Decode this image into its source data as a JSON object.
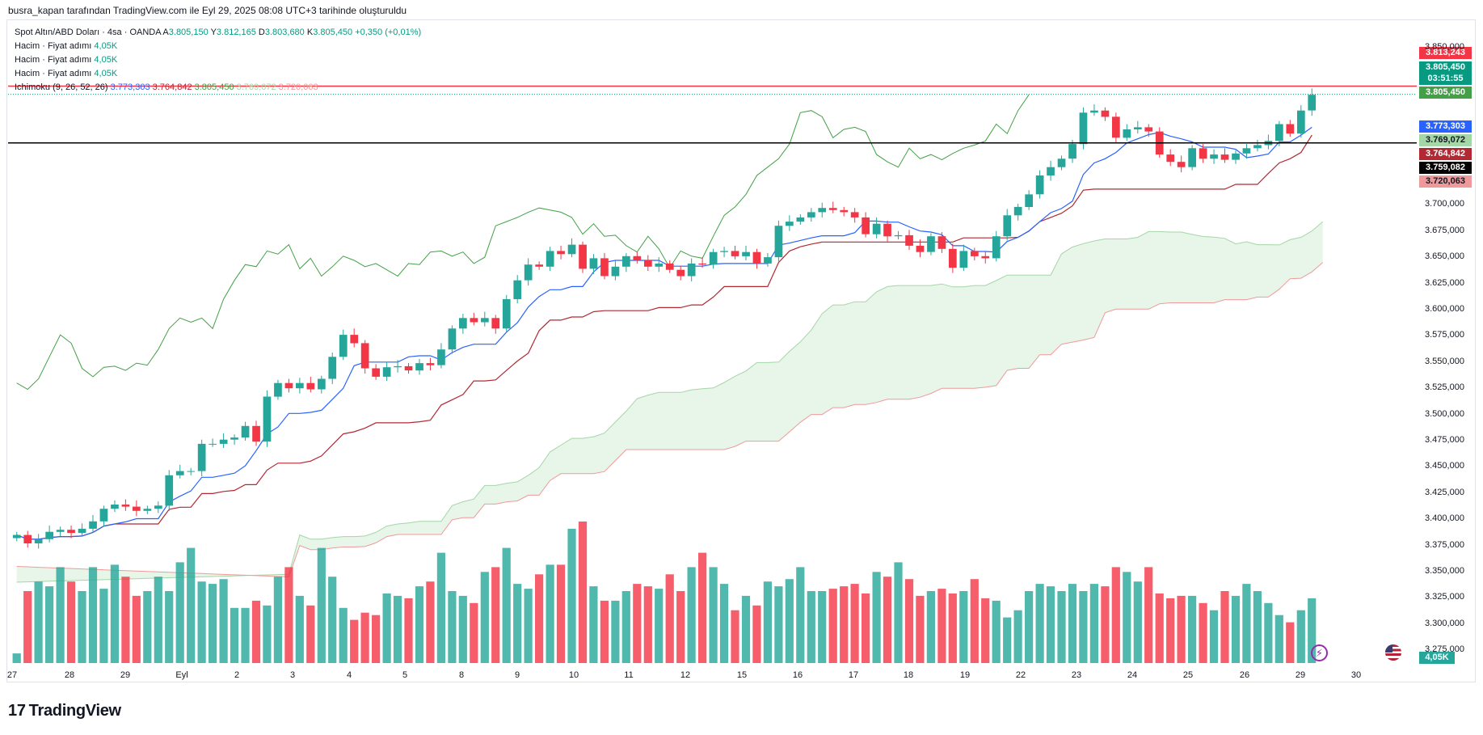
{
  "header": {
    "attribution": "busra_kapan tarafından TradingView.com ile Eyl 29, 2025 08:08 UTC+3 tarihinde oluşturuldu"
  },
  "legend": {
    "symbol": "Spot Altın/ABD Doları · 4sa · OANDA",
    "open_label": "A",
    "open": "3.805,150",
    "high_label": "Y",
    "high": "3.812,165",
    "low_label": "D",
    "low": "3.803,680",
    "close_label": "K",
    "close": "3.805,450",
    "change": "+0,350 (+0,01%)",
    "volume_rows": [
      {
        "label": "Hacim · Fiyat adımı",
        "value": "4,05K"
      },
      {
        "label": "Hacim · Fiyat adımı",
        "value": "4,05K"
      },
      {
        "label": "Hacim · Fiyat adımı",
        "value": "4,05K"
      }
    ],
    "ichimoku_label": "Ichimoku (9, 26, 52, 26)",
    "ichimoku_values": [
      "3.773,303",
      "3.764,842",
      "3.805,450",
      "3.769,072",
      "3.720,063"
    ]
  },
  "price_tags": [
    {
      "value": "3.813,243",
      "color": "#f23645"
    },
    {
      "value": "3.805,450",
      "color": "#089981"
    },
    {
      "value": "03:51:55",
      "color": "#089981"
    },
    {
      "value": "3.805,450",
      "color": "#43a047"
    },
    {
      "value": "3.773,303",
      "color": "#2962ff"
    },
    {
      "value": "3.769,072",
      "color": "#a5d6a7"
    },
    {
      "value": "3.764,842",
      "color": "#b22833"
    },
    {
      "value": "3.759,082",
      "color": "#000000"
    },
    {
      "value": "3.720,063",
      "color": "#ef9a9a"
    }
  ],
  "volume_badge": "4,05K",
  "brand": {
    "logo": "17",
    "name": "TradingView"
  },
  "icons": {
    "flash": "lightning-icon",
    "flag": "us-flag-icon"
  },
  "colors": {
    "up": "#26a69a",
    "down": "#f23645",
    "tenkan": "#2962ff",
    "kijun": "#b22833",
    "chikou": "#43a047",
    "cloud_fill": "#e8f5e9"
  },
  "chart_data": {
    "type": "candlestick",
    "title": "Spot Altın/ABD Doları · 4sa · OANDA",
    "y_ticks": [
      "3.850,000",
      "3.700,000",
      "3.675,000",
      "3.650,000",
      "3.625,000",
      "3.600,000",
      "3.575,000",
      "3.550,000",
      "3.525,000",
      "3.500,000",
      "3.475,000",
      "3.450,000",
      "3.425,000",
      "3.400,000",
      "3.375,000",
      "3.350,000",
      "3.325,000",
      "3.300,000",
      "3.275,000"
    ],
    "ylim": [
      3269,
      3853
    ],
    "x_ticks": [
      "27",
      "28",
      "29",
      "Eyl",
      "2",
      "3",
      "4",
      "5",
      "8",
      "9",
      "10",
      "11",
      "12",
      "15",
      "16",
      "17",
      "18",
      "19",
      "22",
      "23",
      "24",
      "25",
      "26",
      "29",
      "30"
    ],
    "horizontal_lines": [
      {
        "value": 3813.243,
        "color": "#f23645"
      },
      {
        "value": 3759.082,
        "color": "#000000"
      }
    ],
    "close_series": [
      3385,
      3377,
      3381,
      3388,
      3390,
      3387,
      3391,
      3398,
      3410,
      3414,
      3412,
      3408,
      3410,
      3413,
      3442,
      3446,
      3446,
      3472,
      3472,
      3476,
      3478,
      3489,
      3474,
      3517,
      3530,
      3525,
      3530,
      3524,
      3534,
      3555,
      3576,
      3568,
      3544,
      3536,
      3545,
      3546,
      3542,
      3549,
      3547,
      3562,
      3582,
      3592,
      3588,
      3592,
      3582,
      3610,
      3628,
      3643,
      3641,
      3656,
      3653,
      3662,
      3639,
      3649,
      3632,
      3641,
      3651,
      3647,
      3641,
      3644,
      3638,
      3632,
      3644,
      3643,
      3655,
      3656,
      3651,
      3655,
      3644,
      3650,
      3680,
      3684,
      3688,
      3693,
      3697,
      3695,
      3693,
      3688,
      3672,
      3682,
      3670,
      3671,
      3661,
      3655,
      3670,
      3658,
      3640,
      3656,
      3651,
      3649,
      3670,
      3690,
      3698,
      3710,
      3728,
      3736,
      3744,
      3758,
      3788,
      3790,
      3784,
      3764,
      3772,
      3774,
      3770,
      3748,
      3741,
      3736,
      3754,
      3744,
      3748,
      3743,
      3749,
      3754,
      3757,
      3761,
      3777,
      3768,
      3790,
      3805
    ],
    "volume_series": [
      4,
      30,
      34,
      32,
      40,
      34,
      30,
      40,
      31,
      41,
      36,
      28,
      30,
      36,
      30,
      42,
      48,
      34,
      33,
      35,
      23,
      23,
      26,
      24,
      36,
      40,
      28,
      24,
      48,
      36,
      23,
      18,
      21,
      20,
      29,
      28,
      27,
      32,
      34,
      46,
      30,
      28,
      25,
      38,
      40,
      48,
      33,
      31,
      37,
      41,
      41,
      56,
      59,
      32,
      26,
      26,
      30,
      33,
      32,
      31,
      37,
      30,
      40,
      46,
      40,
      33,
      22,
      28,
      24,
      34,
      32,
      35,
      40,
      30,
      30,
      31,
      32,
      33,
      29,
      38,
      36,
      42,
      35,
      28,
      30,
      31,
      29,
      30,
      35,
      27,
      26,
      19,
      22,
      30,
      33,
      32,
      30,
      33,
      30,
      33,
      32,
      40,
      38,
      34,
      40,
      29,
      27,
      28,
      28,
      25,
      22,
      30,
      28,
      33,
      30,
      25,
      20,
      17,
      22,
      27
    ]
  }
}
